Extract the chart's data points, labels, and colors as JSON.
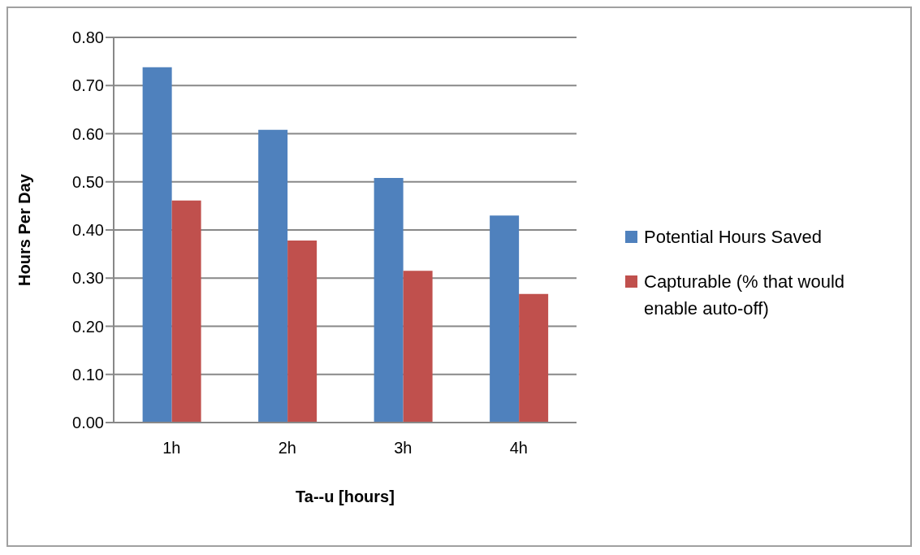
{
  "chart_data": {
    "type": "bar",
    "xlabel": "Ta--u [hours]",
    "ylabel": "Hours Per Day",
    "categories": [
      "1h",
      "2h",
      "3h",
      "4h"
    ],
    "series": [
      {
        "name": "Potential Hours Saved",
        "color": "#4f81bd",
        "values": [
          0.738,
          0.608,
          0.508,
          0.43
        ]
      },
      {
        "name": "Capturable (% that would enable auto-off)",
        "color": "#c0504d",
        "values": [
          0.461,
          0.378,
          0.315,
          0.267
        ]
      }
    ],
    "ylim": [
      0,
      0.8
    ],
    "yticks": [
      {
        "value": 0,
        "label": "0.00"
      },
      {
        "value": 0.1,
        "label": "0.10"
      },
      {
        "value": 0.2,
        "label": "0.20"
      },
      {
        "value": 0.3,
        "label": "0.30"
      },
      {
        "value": 0.4,
        "label": "0.40"
      },
      {
        "value": 0.5,
        "label": "0.50"
      },
      {
        "value": 0.6,
        "label": "0.60"
      },
      {
        "value": 0.7,
        "label": "0.70"
      },
      {
        "value": 0.8,
        "label": "0.80"
      }
    ],
    "grid": "y",
    "legend": "right"
  }
}
